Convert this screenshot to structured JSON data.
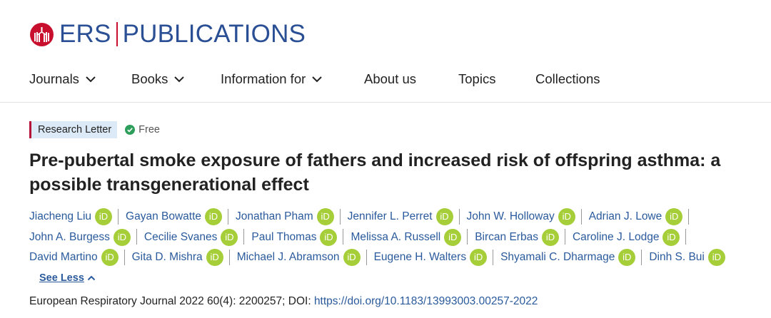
{
  "header": {
    "logo_left": "ERS",
    "logo_right": "PUBLICATIONS",
    "brand_colors": {
      "blue": "#2a4f94",
      "red": "#c8102e"
    }
  },
  "nav": {
    "items": [
      {
        "label": "Journals",
        "has_dropdown": true
      },
      {
        "label": "Books",
        "has_dropdown": true
      },
      {
        "label": "Information for",
        "has_dropdown": true
      },
      {
        "label": "About us",
        "has_dropdown": false
      },
      {
        "label": "Topics",
        "has_dropdown": false
      },
      {
        "label": "Collections",
        "has_dropdown": false
      }
    ]
  },
  "article": {
    "type_label": "Research Letter",
    "access_label": "Free",
    "title": "Pre-pubertal smoke exposure of fathers and increased risk of offspring asthma: a possible transgenerational effect",
    "authors": [
      "Jiacheng Liu",
      "Gayan Bowatte",
      "Jonathan Pham",
      "Jennifer L. Perret",
      "John W. Holloway",
      "Adrian J. Lowe",
      "John A. Burgess",
      "Cecilie Svanes",
      "Paul Thomas",
      "Melissa A. Russell",
      "Bircan Erbas",
      "Caroline J. Lodge",
      "David Martino",
      "Gita D. Mishra",
      "Michael J. Abramson",
      "Eugene H. Walters",
      "Shyamali C. Dharmage",
      "Dinh S. Bui"
    ],
    "orcid_label": "iD",
    "see_less_label": "See Less",
    "citation_text": "European Respiratory Journal 2022 60(4): 2200257; DOI: ",
    "doi_link": "https://doi.org/10.1183/13993003.00257-2022"
  }
}
